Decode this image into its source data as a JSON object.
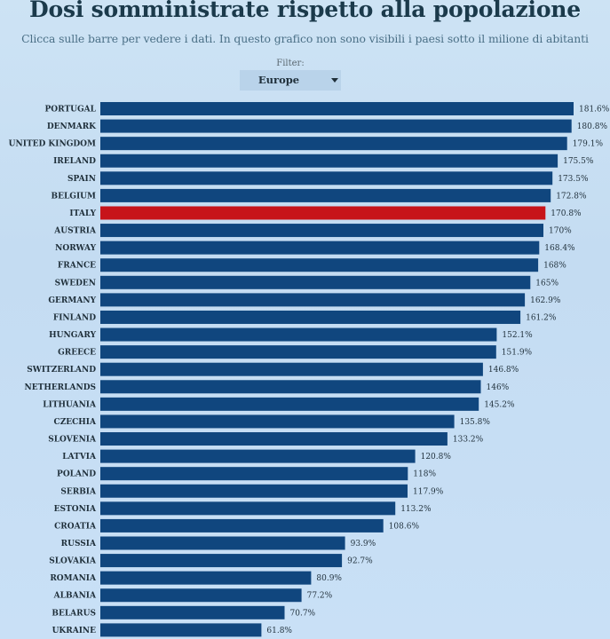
{
  "header": {
    "title": "Dosi somministrate rispetto alla popolazione",
    "subtitle": "Clicca sulle barre per vedere i dati. In questo grafico non sono visibili i paesi sotto il milione di abitanti"
  },
  "filter": {
    "label": "Filter:",
    "selected": "Europe"
  },
  "colors": {
    "bar": "#10467e",
    "highlight": "#c7141a"
  },
  "chart_data": {
    "type": "bar",
    "orientation": "horizontal",
    "title": "Dosi somministrate rispetto alla popolazione",
    "categories": [
      "PORTUGAL",
      "DENMARK",
      "UNITED KINGDOM",
      "IRELAND",
      "SPAIN",
      "BELGIUM",
      "ITALY",
      "AUSTRIA",
      "NORWAY",
      "FRANCE",
      "SWEDEN",
      "GERMANY",
      "FINLAND",
      "HUNGARY",
      "GREECE",
      "SWITZERLAND",
      "NETHERLANDS",
      "LITHUANIA",
      "CZECHIA",
      "SLOVENIA",
      "LATVIA",
      "POLAND",
      "SERBIA",
      "ESTONIA",
      "CROATIA",
      "RUSSIA",
      "SLOVAKIA",
      "ROMANIA",
      "ALBANIA",
      "BELARUS",
      "UKRAINE"
    ],
    "values": [
      181.6,
      180.8,
      179.1,
      175.5,
      173.5,
      172.8,
      170.8,
      170,
      168.4,
      168,
      165,
      162.9,
      161.2,
      152.1,
      151.9,
      146.8,
      146,
      145.2,
      135.8,
      133.2,
      120.8,
      118,
      117.9,
      113.2,
      108.6,
      93.9,
      92.7,
      80.9,
      77.2,
      70.7,
      61.8
    ],
    "value_labels": [
      "181.6%",
      "180.8%",
      "179.1%",
      "175.5%",
      "173.5%",
      "172.8%",
      "170.8%",
      "170%",
      "168.4%",
      "168%",
      "165%",
      "162.9%",
      "161.2%",
      "152.1%",
      "151.9%",
      "146.8%",
      "146%",
      "145.2%",
      "135.8%",
      "133.2%",
      "120.8%",
      "118%",
      "117.9%",
      "113.2%",
      "108.6%",
      "93.9%",
      "92.7%",
      "80.9%",
      "77.2%",
      "70.7%",
      "61.8%"
    ],
    "highlight": "ITALY",
    "xlim": [
      0,
      181.6
    ],
    "grid": false,
    "legend": "none"
  }
}
